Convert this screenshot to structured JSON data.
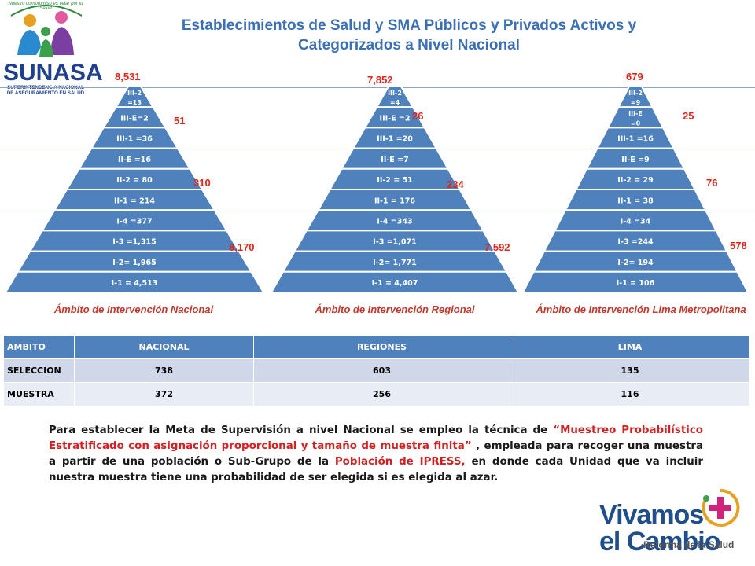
{
  "title": "Establecimientos de Salud  y SMA Públicos y Privados Activos y Categorizados  a Nivel Nacional",
  "logo": {
    "tagline": "Nuestro compromiso es velar por tu Salud",
    "name": "SUNASA",
    "subtitle": "SUPERINTENDENCIA NACIONAL DE ASEGURAMIENTO EN SALUD"
  },
  "pyramids": [
    {
      "id": "nacional",
      "caption": "Ámbito de Intervención Nacional",
      "total": "8,531",
      "tier3_total": "51",
      "tier2_total": "310",
      "tier1_total": "8,170",
      "levels": [
        "III-2 =13",
        "III-E=2",
        "III-1 =36",
        "II-E =16",
        "II-2 = 80",
        "II-1 = 214",
        "I-4 =377",
        "I-3 =1,315",
        "I-2= 1,965",
        "I-1 = 4,513"
      ]
    },
    {
      "id": "regional",
      "caption": "Ámbito de Intervención Regional",
      "total": "7,852",
      "tier3_total": "26",
      "tier2_total": "234",
      "tier1_total": "7,592",
      "levels": [
        "III-2 =4",
        "III-E =2",
        "III-1 =20",
        "II-E =7",
        "II-2 = 51",
        "II-1 = 176",
        "I-4 =343",
        "I-3 =1,071",
        "I-2= 1,771",
        "I-1 = 4,407"
      ]
    },
    {
      "id": "lima",
      "caption": "Ámbito de Intervención Lima Metropolitana",
      "total": "679",
      "tier3_total": "25",
      "tier2_total": "76",
      "tier1_total": "578",
      "levels": [
        "III-2 =9",
        "III-E =0",
        "III-1 =16",
        "II-E =9",
        "II-2 = 29",
        "II-1 = 38",
        "I-4 =34",
        "I-3 =244",
        "I-2= 194",
        "I-1 = 106"
      ]
    }
  ],
  "table": {
    "headers": [
      "AMBITO",
      "NACIONAL",
      "REGIONES",
      "LIMA"
    ],
    "rows": [
      [
        "SELECCION",
        "738",
        "603",
        "135"
      ],
      [
        "MUESTRA",
        "372",
        "256",
        "116"
      ]
    ]
  },
  "paragraph": {
    "p1": "Para establecer la Meta de Supervisión a nivel Nacional se empleo la técnica de ",
    "h1": "“Muestreo Probabilístico Estratificado con asignación proporcional y tamaño de muestra finita”",
    "p2": " , empleada para recoger una muestra a partir de una población o Sub-Grupo de la ",
    "h2": "Población de IPRESS,",
    "p3": " en donde cada Unidad que va incluir nuestra muestra tiene una probabilidad de ser elegida si es elegida al azar."
  },
  "campaign": {
    "line1": "Vivamos",
    "line2": "el Cambio",
    "line3": "Reforma de la Salud"
  },
  "colors": {
    "title": "#3b6fb6",
    "pyramid_fill": "#4f81bd",
    "pyramid_stroke": "#ffffff",
    "highlight": "#e3241b",
    "table_header": "#4f81bd",
    "table_row_a": "#cfd7e8",
    "table_row_b": "#e8ecf4"
  }
}
